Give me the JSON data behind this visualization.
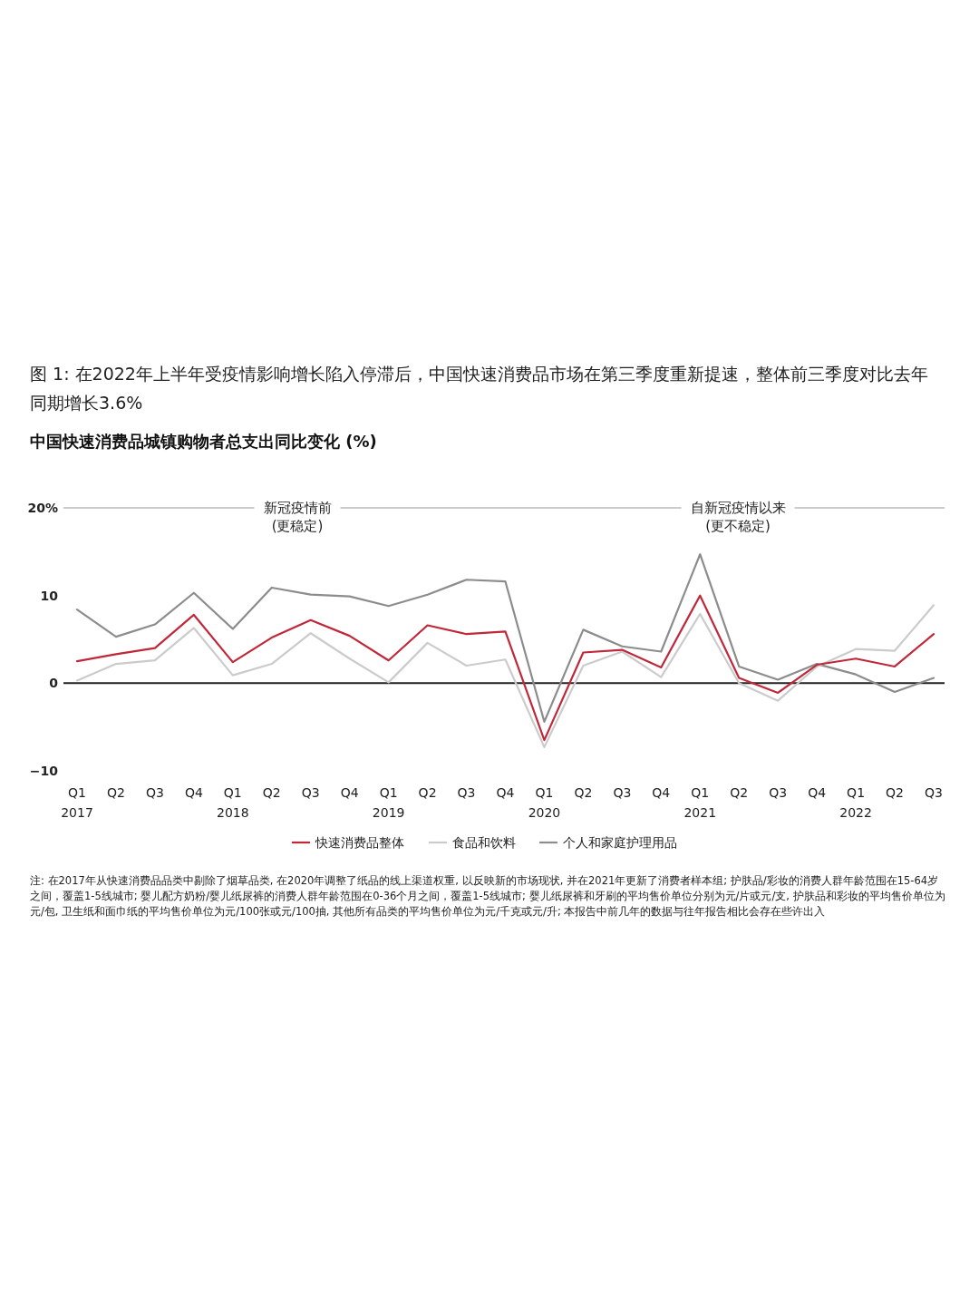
{
  "chart_data": {
    "type": "line",
    "title": "图 1: 在2022年上半年受疫情影响增长陷入停滞后，中国快速消费品市场在第三季度重新提速，整体前三季度对比去年同期增长3.6%",
    "subtitle": "中国快速消费品城镇购物者总支出同比变化 (%)",
    "categories": [
      "Q1\n2017",
      "Q2",
      "Q3",
      "Q4",
      "Q1\n2018",
      "Q2",
      "Q3",
      "Q4",
      "Q1\n2019",
      "Q2",
      "Q3",
      "Q4",
      "Q1\n2020",
      "Q2",
      "Q3",
      "Q4",
      "Q1\n2021",
      "Q2",
      "Q3",
      "Q4",
      "Q1\n2022",
      "Q2",
      "Q3"
    ],
    "series": [
      {
        "name": "快速消费品整体",
        "color": "#c0283a",
        "values": [
          2.5,
          3.3,
          4.0,
          7.8,
          2.4,
          5.2,
          7.2,
          5.4,
          2.6,
          6.6,
          5.6,
          5.9,
          -6.5,
          3.5,
          3.8,
          1.8,
          10.0,
          0.6,
          -1.1,
          2.1,
          2.8,
          1.9,
          5.6
        ]
      },
      {
        "name": "食品和饮料",
        "color": "#cbcbcb",
        "values": [
          0.3,
          2.2,
          2.6,
          6.3,
          0.9,
          2.2,
          5.7,
          2.8,
          0.1,
          4.6,
          2.0,
          2.7,
          -7.3,
          2.0,
          3.6,
          0.7,
          7.9,
          0.0,
          -2.0,
          1.9,
          3.9,
          3.7,
          8.9
        ]
      },
      {
        "name": "个人和家庭护理用品",
        "color": "#8c8c8c",
        "values": [
          8.4,
          5.3,
          6.7,
          10.3,
          6.2,
          10.9,
          10.1,
          9.9,
          8.8,
          10.1,
          11.8,
          11.6,
          -4.4,
          6.1,
          4.2,
          3.6,
          14.7,
          1.9,
          0.4,
          2.2,
          1.0,
          -1.0,
          0.6
        ]
      }
    ],
    "ylim": [
      -10,
      20
    ],
    "yticks": [
      {
        "value": 20,
        "label": "20%"
      },
      10,
      0,
      {
        "value": -10,
        "label": "−10"
      }
    ],
    "ref_lines": [
      {
        "axis": "y",
        "value": 0,
        "color": "#222222"
      },
      {
        "axis": "y",
        "value": 20,
        "color": "#999999"
      }
    ],
    "legend": "bottom",
    "grid": false,
    "annotations": [
      "新冠疫情前\n(更稳定)",
      "自新冠疫情以来\n(更不稳定)",
      "注: 在2017年从快速消费品品类中剔除了烟草品类, 在2020年调整了纸品的线上渠道权重, 以反映新的市场现状, 并在2021年更新了消费者样本组; 护肤品/彩妆的消费人群年龄范围在15-64岁之间，覆盖1-5线城市; 婴儿配方奶粉/婴儿纸尿裤的消费人群年龄范围在0-36个月之间，覆盖1-5线城市; 婴儿纸尿裤和牙刷的平均售价单位分别为元/片或元/支, 护肤品和彩妆的平均售价单位为元/包, 卫生纸和面巾纸的平均售价单位为元/100张或元/100抽, 其他所有品类的平均售价单位为元/千克或元/升; 本报告中前几年的数据与往年报告相比会存在些许出入"
    ]
  }
}
